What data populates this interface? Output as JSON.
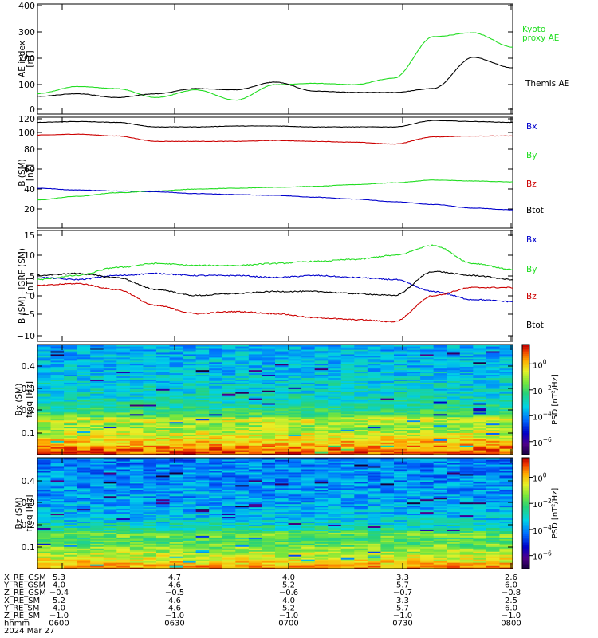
{
  "figure": {
    "time_axis": {
      "ticks": [
        "0600",
        "0630",
        "0700",
        "0730",
        "0800"
      ],
      "date": "2024 Mar 27",
      "row_label": "hhmm"
    },
    "ephemeris": [
      {
        "label": "X_RE_GSM",
        "values": [
          "5.3",
          "4.7",
          "4.0",
          "3.3",
          "2.6"
        ]
      },
      {
        "label": "Y_RE_GSM",
        "values": [
          "4.0",
          "4.6",
          "5.2",
          "5.7",
          "6.0"
        ]
      },
      {
        "label": "Z_RE_GSM",
        "values": [
          "−0.4",
          "−0.5",
          "−0.6",
          "−0.7",
          "−0.8"
        ]
      },
      {
        "label": "X_RE_SM",
        "values": [
          "5.2",
          "4.6",
          "4.0",
          "3.3",
          "2.5"
        ]
      },
      {
        "label": "Y_RE_SM",
        "values": [
          "4.0",
          "4.6",
          "5.2",
          "5.7",
          "6.0"
        ]
      },
      {
        "label": "Z_RE_SM",
        "values": [
          "−1.0",
          "−1.0",
          "−1.0",
          "−1.0",
          "−1.0"
        ]
      }
    ],
    "colors": {
      "bx": "#0000cc",
      "by": "#22dd22",
      "bz": "#cc0000",
      "btot": "#000000"
    }
  },
  "chart_data": [
    {
      "type": "line",
      "ylabel": "AE index",
      "yunit": "[nT]",
      "ylim": [
        0,
        400
      ],
      "yticks": [
        "0",
        "100",
        "200",
        "300",
        "400"
      ],
      "x": [
        "0600",
        "0610",
        "0620",
        "0630",
        "0640",
        "0650",
        "0700",
        "0710",
        "0720",
        "0730",
        "0740",
        "0750",
        "0800"
      ],
      "series": [
        {
          "name_lines": [
            "Kyoto",
            "proxy AE"
          ],
          "color_key": "by",
          "values": [
            60,
            88,
            80,
            45,
            75,
            35,
            95,
            100,
            95,
            120,
            280,
            295,
            240
          ]
        },
        {
          "name_lines": [
            "Themis AE"
          ],
          "color_key": "btot",
          "values": [
            50,
            60,
            45,
            60,
            80,
            75,
            105,
            70,
            65,
            65,
            80,
            200,
            160
          ]
        }
      ]
    },
    {
      "type": "line",
      "ylabel": "B (SM)",
      "yunit": "[nT]",
      "ylim": [
        10,
        120
      ],
      "yticks": [
        "20",
        "40",
        "60",
        "80",
        "100",
        "120"
      ],
      "x": [
        "0600",
        "0610",
        "0620",
        "0630",
        "0640",
        "0650",
        "0700",
        "0710",
        "0720",
        "0730",
        "0740",
        "0750",
        "0800"
      ],
      "series": [
        {
          "name_lines": [
            "Bx"
          ],
          "color_key": "bx",
          "values": [
            43,
            41,
            40,
            39,
            37,
            36,
            35,
            33,
            31,
            28,
            25,
            21,
            19
          ]
        },
        {
          "name_lines": [
            "By"
          ],
          "color_key": "by",
          "values": [
            30,
            34,
            38,
            40,
            42,
            43,
            44,
            45,
            47,
            49,
            52,
            51,
            50
          ]
        },
        {
          "name_lines": [
            "Bz"
          ],
          "color_key": "bz",
          "values": [
            102,
            103,
            101,
            95,
            95,
            95,
            96,
            95,
            94,
            92,
            100,
            101,
            101
          ]
        },
        {
          "name_lines": [
            "Btot"
          ],
          "color_key": "btot",
          "values": [
            116,
            117,
            116,
            111,
            111,
            112,
            112,
            111,
            111,
            111,
            118,
            117,
            116
          ]
        }
      ]
    },
    {
      "type": "line",
      "ylabel": "B (SM)−IGRF (SM)",
      "yunit": "[nT]",
      "ylim": [
        -10,
        15
      ],
      "yticks": [
        "−10",
        "−5",
        "0",
        "5",
        "10",
        "15"
      ],
      "x": [
        "0600",
        "0610",
        "0620",
        "0630",
        "0640",
        "0650",
        "0700",
        "0710",
        "0720",
        "0730",
        "0740",
        "0750",
        "0800"
      ],
      "series": [
        {
          "name_lines": [
            "Bx"
          ],
          "color_key": "bx",
          "values": [
            4.5,
            4,
            5,
            5.5,
            5,
            5,
            4.5,
            5,
            4.5,
            4,
            1,
            -1,
            -1.5
          ]
        },
        {
          "name_lines": [
            "By"
          ],
          "color_key": "by",
          "values": [
            4,
            5,
            7,
            8,
            7.5,
            7.5,
            8,
            8.5,
            9,
            10,
            12.5,
            8,
            6.5
          ]
        },
        {
          "name_lines": [
            "Bz"
          ],
          "color_key": "bz",
          "values": [
            2.5,
            3,
            1.5,
            -2.5,
            -4.5,
            -4,
            -4.5,
            -5.5,
            -6,
            -6.5,
            0,
            2,
            2
          ]
        },
        {
          "name_lines": [
            "Btot"
          ],
          "color_key": "btot",
          "values": [
            5,
            5.5,
            4.5,
            1.5,
            0,
            0.5,
            1,
            1,
            0.5,
            0,
            6,
            5,
            4
          ]
        }
      ]
    },
    {
      "type": "heatmap",
      "ylabel": "Bx (SM)",
      "ylabel2": "freq",
      "yunit": "[Hz]",
      "ylim": [
        0,
        0.5
      ],
      "yticks": [
        "0.1",
        "0.2",
        "0.3",
        "0.4"
      ],
      "colorbar": {
        "label": "PSD",
        "unit": "[nT²/Hz]",
        "range_log10": [
          -7,
          1.5
        ],
        "ticks": [
          {
            "base": "10",
            "exp": "0"
          },
          {
            "base": "10",
            "exp": "−2"
          },
          {
            "base": "10",
            "exp": "−4"
          },
          {
            "base": "10",
            "exp": "−6"
          }
        ]
      },
      "psd_profile_log10": [
        1.0,
        0.0,
        -1.0,
        -1.6,
        -2.6,
        -3.0,
        -3.2,
        -3.4,
        -3.5,
        -3.6
      ]
    },
    {
      "type": "heatmap",
      "ylabel": "Bz (SM)",
      "ylabel2": "freq",
      "yunit": "[Hz]",
      "ylim": [
        0,
        0.5
      ],
      "yticks": [
        "0.1",
        "0.2",
        "0.3",
        "0.4"
      ],
      "colorbar": {
        "label": "PSD",
        "unit": "[nT²/Hz]",
        "range_log10": [
          -7,
          1.5
        ],
        "ticks": [
          {
            "base": "10",
            "exp": "0"
          },
          {
            "base": "10",
            "exp": "−2"
          },
          {
            "base": "10",
            "exp": "−4"
          },
          {
            "base": "10",
            "exp": "−6"
          }
        ]
      },
      "psd_profile_log10": [
        0.5,
        -0.8,
        -1.6,
        -2.4,
        -3.3,
        -3.6,
        -3.8,
        -3.9,
        -4.0,
        -4.1
      ]
    }
  ]
}
